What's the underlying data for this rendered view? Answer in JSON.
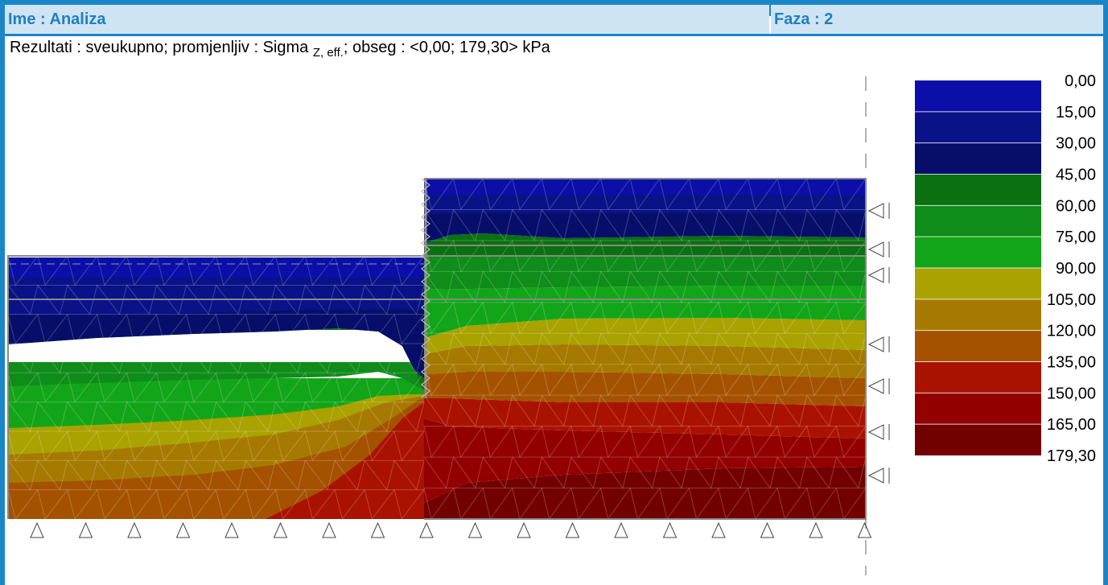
{
  "header": {
    "name_label": "Ime : Analiza",
    "phase_label": "Faza : 2"
  },
  "results": {
    "prefix": "Rezultati : sveukupno; promjenljiv : Sigma ",
    "subscript": "Z, eff.",
    "suffix": "; obseg : <0,00; 179,30> kPa"
  },
  "legend": {
    "labels": [
      "0,00",
      "15,00",
      "30,00",
      "45,00",
      "60,00",
      "75,00",
      "90,00",
      "105,00",
      "120,00",
      "135,00",
      "150,00",
      "165,00",
      "179,30"
    ],
    "colors": [
      "#0b0fa8",
      "#0a1288",
      "#060e6a",
      "#0a7010",
      "#0f8c1a",
      "#13a519",
      "#a9a200",
      "#a67a00",
      "#a45200",
      "#aa1200",
      "#930000",
      "#730000"
    ]
  },
  "colors": {
    "frame": "#1a86c8",
    "header_bg": "#cfe4f3",
    "header_text": "#1f7fc2",
    "mesh": "#9a9a9a"
  }
}
